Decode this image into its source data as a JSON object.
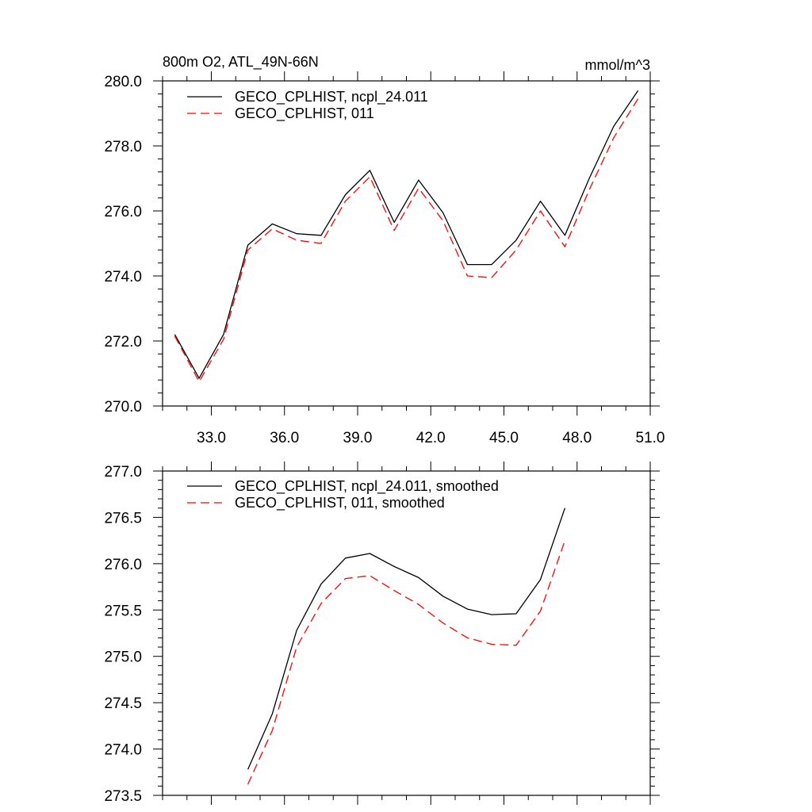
{
  "chart_data": [
    {
      "type": "line",
      "title_left": "800m O2, ATL_49N-66N",
      "title_right": "mmol/m^3",
      "xlim": [
        31.0,
        51.0
      ],
      "ylim": [
        270.0,
        280.0
      ],
      "xticks": [
        33.0,
        36.0,
        39.0,
        42.0,
        45.0,
        48.0,
        51.0
      ],
      "xtick_labels": [
        "33.0",
        "36.0",
        "39.0",
        "42.0",
        "45.0",
        "48.0",
        "51.0"
      ],
      "yticks": [
        270.0,
        272.0,
        274.0,
        276.0,
        278.0,
        280.0
      ],
      "ytick_labels": [
        "270.0",
        "272.0",
        "274.0",
        "276.0",
        "278.0",
        "280.0"
      ],
      "x": [
        31.5,
        32.5,
        33.5,
        34.5,
        35.5,
        36.5,
        37.5,
        38.5,
        39.5,
        40.5,
        41.5,
        42.5,
        43.5,
        44.5,
        45.5,
        46.5,
        47.5,
        48.5,
        49.5,
        50.5
      ],
      "series": [
        {
          "name": "GECO_CPLHIST, ncpl_24.011",
          "color": "#000000",
          "dash": "solid",
          "values": [
            272.2,
            270.85,
            272.2,
            274.95,
            275.6,
            275.3,
            275.25,
            276.5,
            277.25,
            275.65,
            276.95,
            275.95,
            274.35,
            274.35,
            275.1,
            276.3,
            275.25,
            277.0,
            278.6,
            279.7
          ]
        },
        {
          "name": "GECO_CPLHIST, 011",
          "color": "#ff0000",
          "dash": "dashed",
          "values": [
            272.15,
            270.75,
            272.05,
            274.8,
            275.45,
            275.1,
            275.0,
            276.3,
            277.05,
            275.4,
            276.7,
            275.7,
            274.0,
            273.95,
            274.8,
            276.0,
            274.9,
            276.65,
            278.25,
            279.45
          ]
        }
      ]
    },
    {
      "type": "line",
      "xlim": [
        31.0,
        51.0
      ],
      "ylim": [
        273.5,
        277.0
      ],
      "xticks": [
        33.0,
        36.0,
        39.0,
        42.0,
        45.0,
        48.0,
        51.0
      ],
      "yticks": [
        273.5,
        274.0,
        274.5,
        275.0,
        275.5,
        276.0,
        276.5,
        277.0
      ],
      "ytick_labels": [
        "273.5",
        "274.0",
        "274.5",
        "275.0",
        "275.5",
        "276.0",
        "276.5",
        "277.0"
      ],
      "x": [
        34.5,
        35.5,
        36.5,
        37.5,
        38.5,
        39.5,
        40.5,
        41.5,
        42.5,
        43.5,
        44.5,
        45.5,
        46.5,
        47.5
      ],
      "series": [
        {
          "name": "GECO_CPLHIST, ncpl_24.011, smoothed",
          "color": "#000000",
          "dash": "solid",
          "values": [
            273.78,
            274.38,
            275.28,
            275.78,
            276.06,
            276.11,
            275.97,
            275.85,
            275.65,
            275.51,
            275.45,
            275.46,
            275.83,
            276.6
          ]
        },
        {
          "name": "GECO_CPLHIST, 011, smoothed",
          "color": "#ff0000",
          "dash": "dashed",
          "values": [
            273.62,
            274.2,
            275.1,
            275.57,
            275.84,
            275.87,
            275.71,
            275.56,
            275.36,
            275.2,
            275.13,
            275.12,
            275.49,
            276.25
          ]
        }
      ]
    }
  ]
}
